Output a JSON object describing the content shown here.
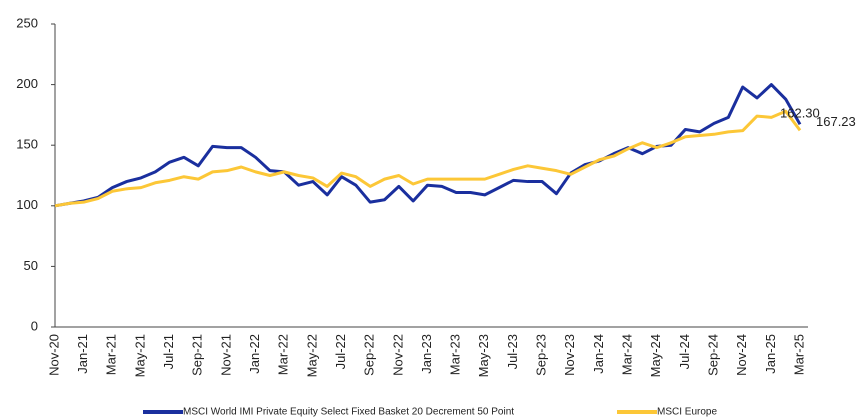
{
  "chart_data": {
    "type": "line",
    "categories": [
      "Nov-20",
      null,
      "Jan-21",
      null,
      "Mar-21",
      null,
      "May-21",
      null,
      "Jul-21",
      null,
      "Sep-21",
      null,
      "Nov-21",
      null,
      "Jan-22",
      null,
      "Mar-22",
      null,
      "May-22",
      null,
      "Jul-22",
      null,
      "Sep-22",
      null,
      "Nov-22",
      null,
      "Jan-23",
      null,
      "Mar-23",
      null,
      "May-23",
      null,
      "Jul-23",
      null,
      "Sep-23",
      null,
      "Nov-23",
      null,
      "Jan-24",
      null,
      "Mar-24",
      null,
      "May-24",
      null,
      "Jul-24",
      null,
      "Sep-24",
      null,
      "Nov-24",
      null,
      "Jan-25",
      null,
      "Mar-25"
    ],
    "series": [
      {
        "name": "MSCI World IMI Private Equity Select Fixed Basket 20 Decrement 50 Point",
        "color": "#1a2f9e",
        "values": [
          100,
          102,
          104,
          107,
          115,
          120,
          123,
          128,
          136,
          140,
          133,
          149,
          148,
          148,
          140,
          129,
          128,
          117,
          120,
          109,
          124,
          117,
          103,
          105,
          116,
          104,
          117,
          116,
          111,
          111,
          109,
          115,
          121,
          120,
          120,
          110,
          127,
          134,
          137,
          143,
          148,
          143,
          149,
          150,
          163,
          161,
          168,
          173,
          198,
          189,
          200,
          188,
          167.23
        ],
        "value_labels": [
          null,
          null,
          null,
          null,
          null,
          null,
          null,
          null,
          null,
          null,
          null,
          null,
          null,
          null,
          null,
          null,
          null,
          null,
          null,
          null,
          null,
          null,
          null,
          null,
          null,
          null,
          null,
          null,
          null,
          null,
          null,
          null,
          null,
          null,
          null,
          null,
          null,
          null,
          null,
          null,
          null,
          null,
          null,
          null,
          null,
          null,
          null,
          null,
          null,
          null,
          null,
          null,
          "167.23"
        ]
      },
      {
        "name": "MSCI Europe",
        "color": "#fcc737",
        "values": [
          100,
          102,
          103,
          106,
          112,
          114,
          115,
          119,
          121,
          124,
          122,
          128,
          129,
          132,
          128,
          125,
          128,
          125,
          123,
          116,
          127,
          124,
          116,
          122,
          125,
          118,
          122,
          122,
          122,
          122,
          122,
          126,
          130,
          133,
          131,
          129,
          126,
          132,
          138,
          141,
          147,
          152,
          148,
          152,
          157,
          158,
          159,
          161,
          162,
          174,
          173,
          178,
          162.3
        ],
        "value_labels": [
          null,
          null,
          null,
          null,
          null,
          null,
          null,
          null,
          null,
          null,
          null,
          null,
          null,
          null,
          null,
          null,
          null,
          null,
          null,
          null,
          null,
          null,
          null,
          null,
          null,
          null,
          null,
          null,
          null,
          null,
          null,
          null,
          null,
          null,
          null,
          null,
          null,
          null,
          null,
          null,
          null,
          null,
          null,
          null,
          null,
          null,
          null,
          null,
          null,
          null,
          null,
          null,
          "162.30"
        ]
      }
    ],
    "ylim": [
      0,
      250
    ],
    "yticks": [
      0,
      50,
      100,
      150,
      200,
      250
    ],
    "grid": false,
    "legend": "bottom"
  }
}
